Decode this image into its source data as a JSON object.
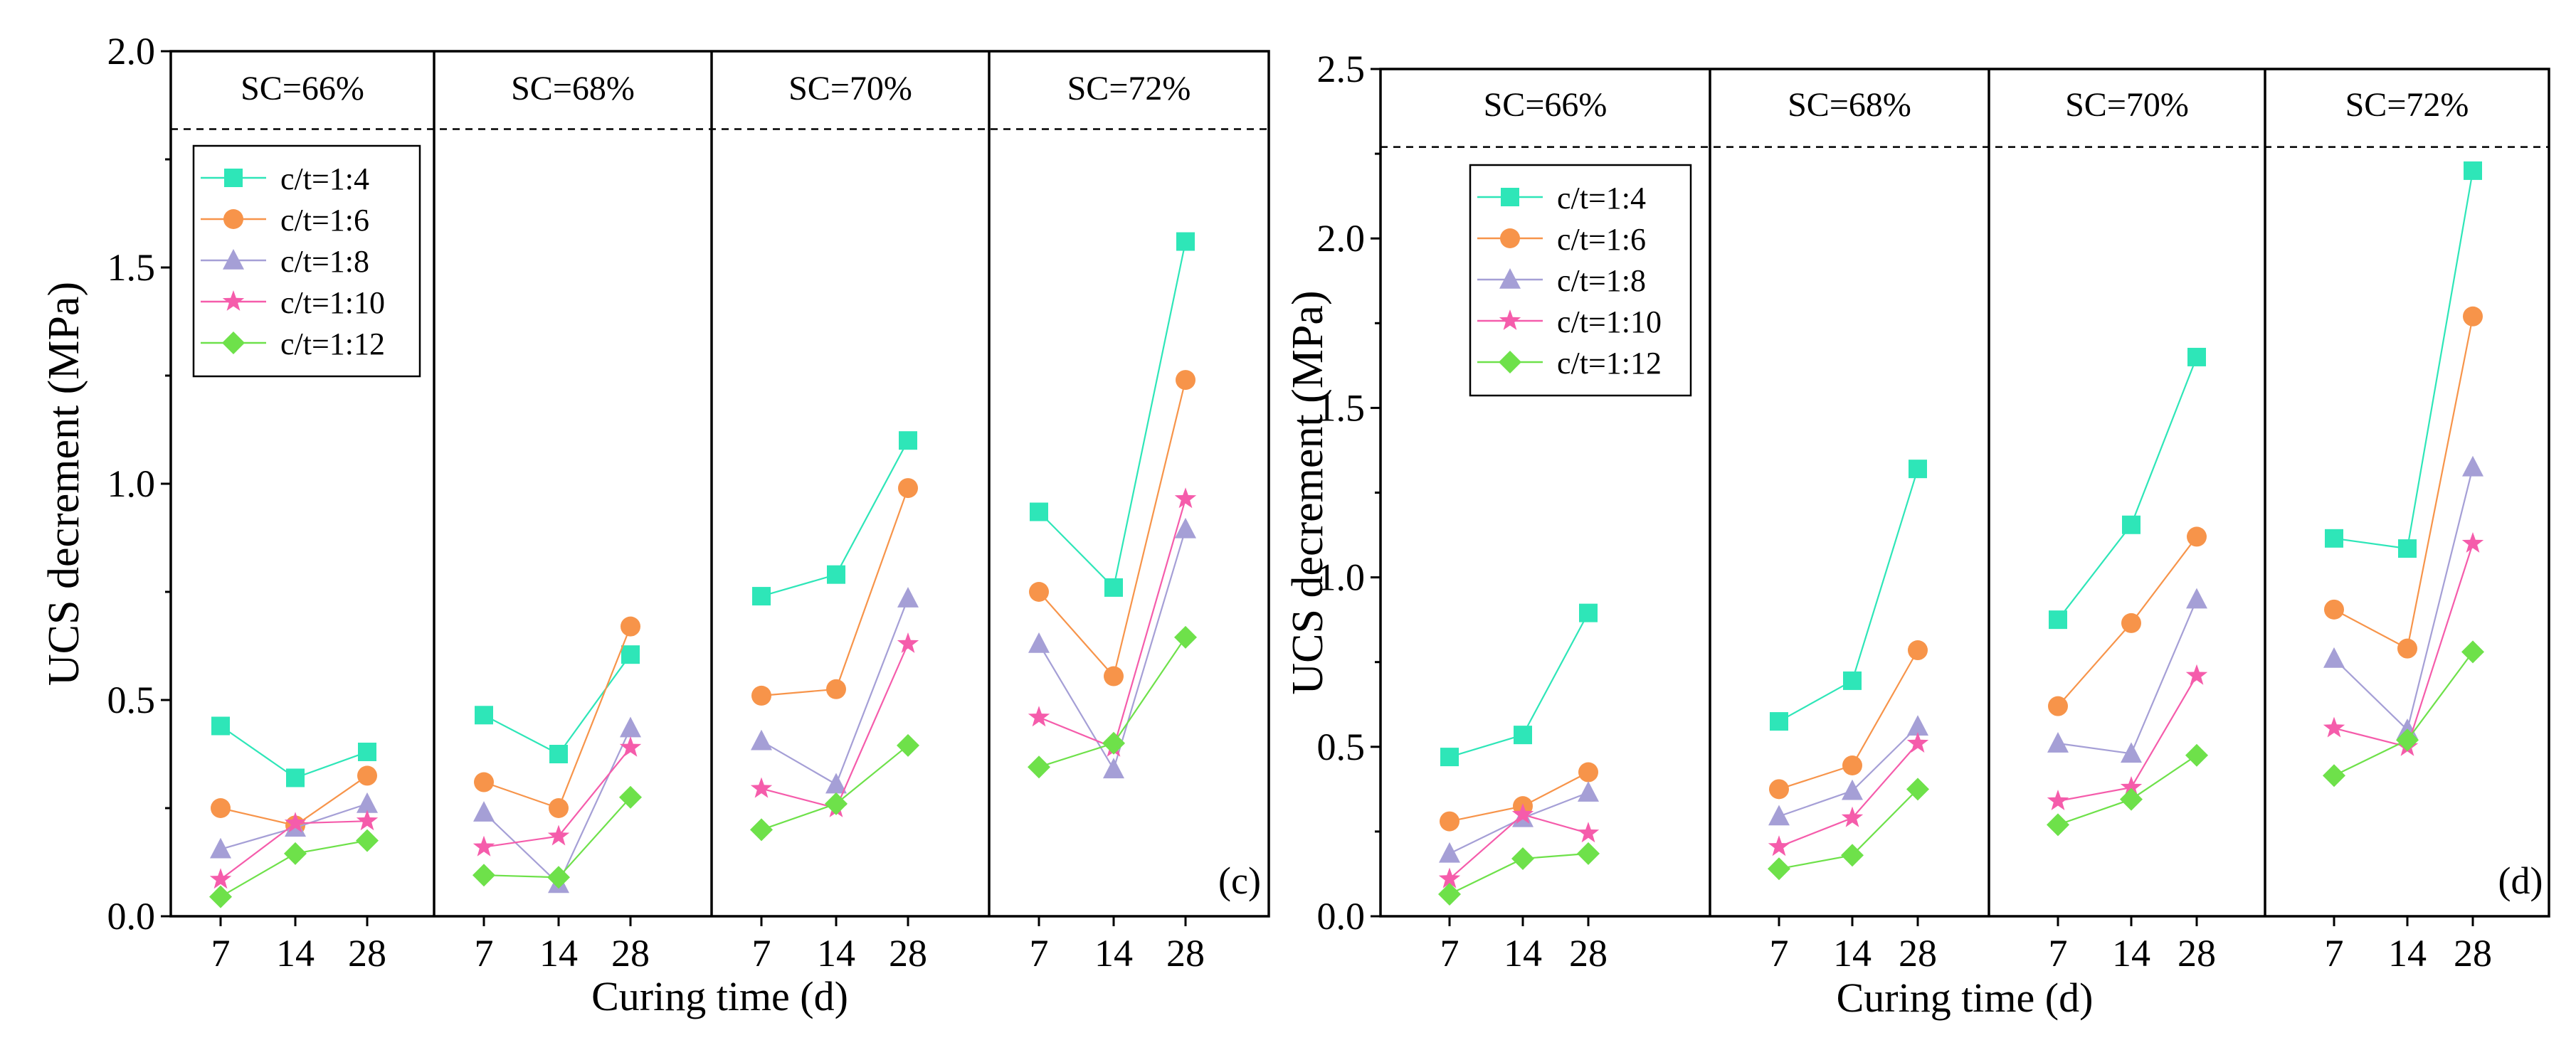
{
  "chart_data": [
    {
      "type": "line",
      "panel_label": "(c)",
      "ylabel": "UCS decrement (MPa)",
      "xlabel": "Curing time (d)",
      "ylim": [
        0,
        2.0
      ],
      "yticks": [
        0.0,
        0.5,
        1.0,
        1.5,
        2.0
      ],
      "ytick_labels": [
        "0.0",
        "0.5",
        "1.0",
        "1.5",
        "2.0"
      ],
      "x": [
        7,
        14,
        28
      ],
      "x_labels": [
        "7",
        "14",
        "28"
      ],
      "reference_line": 1.82,
      "groups": [
        {
          "label": "SC=66%",
          "series": {
            "c/t=1:4": [
              0.44,
              0.32,
              0.38
            ],
            "c/t=1:6": [
              0.25,
              0.21,
              0.325
            ],
            "c/t=1:8": [
              0.155,
              0.205,
              0.26
            ],
            "c/t=1:10": [
              0.085,
              0.215,
              0.22
            ],
            "c/t=1:12": [
              0.045,
              0.145,
              0.175
            ]
          }
        },
        {
          "label": "SC=68%",
          "series": {
            "c/t=1:4": [
              0.465,
              0.375,
              0.605
            ],
            "c/t=1:6": [
              0.31,
              0.25,
              0.67
            ],
            "c/t=1:8": [
              0.24,
              0.075,
              0.435
            ],
            "c/t=1:10": [
              0.16,
              0.185,
              0.39
            ],
            "c/t=1:12": [
              0.095,
              0.09,
              0.275
            ]
          }
        },
        {
          "label": "SC=70%",
          "series": {
            "c/t=1:4": [
              0.74,
              0.79,
              1.1
            ],
            "c/t=1:6": [
              0.51,
              0.525,
              0.99
            ],
            "c/t=1:8": [
              0.405,
              0.305,
              0.735
            ],
            "c/t=1:10": [
              0.295,
              0.25,
              0.63
            ],
            "c/t=1:12": [
              0.2,
              0.26,
              0.395
            ]
          }
        },
        {
          "label": "SC=72%",
          "series": {
            "c/t=1:4": [
              0.935,
              0.76,
              1.56
            ],
            "c/t=1:6": [
              0.75,
              0.555,
              1.24
            ],
            "c/t=1:8": [
              0.63,
              0.34,
              0.895
            ],
            "c/t=1:10": [
              0.46,
              0.39,
              0.965
            ],
            "c/t=1:12": [
              0.345,
              0.4,
              0.645
            ]
          }
        }
      ]
    },
    {
      "type": "line",
      "panel_label": "(d)",
      "ylabel": "UCS decrement (MPa)",
      "xlabel": "Curing time (d)",
      "ylim": [
        0,
        2.5
      ],
      "yticks": [
        0.0,
        0.5,
        1.0,
        1.5,
        2.0,
        2.5
      ],
      "ytick_labels": [
        "0.0",
        "0.5",
        "1.0",
        "1.5",
        "2.0",
        "2.5"
      ],
      "x": [
        7,
        14,
        28
      ],
      "x_labels": [
        "7",
        "14",
        "28"
      ],
      "reference_line": 2.27,
      "groups": [
        {
          "label": "SC=66%",
          "series": {
            "c/t=1:4": [
              0.47,
              0.535,
              0.895
            ],
            "c/t=1:6": [
              0.28,
              0.325,
              0.425
            ],
            "c/t=1:8": [
              0.185,
              0.29,
              0.365
            ],
            "c/t=1:10": [
              0.11,
              0.3,
              0.245
            ],
            "c/t=1:12": [
              0.065,
              0.17,
              0.185
            ]
          }
        },
        {
          "label": "SC=68%",
          "series": {
            "c/t=1:4": [
              0.575,
              0.695,
              1.32
            ],
            "c/t=1:6": [
              0.375,
              0.445,
              0.785
            ],
            "c/t=1:8": [
              0.295,
              0.37,
              0.56
            ],
            "c/t=1:10": [
              0.205,
              0.29,
              0.51
            ],
            "c/t=1:12": [
              0.14,
              0.18,
              0.375
            ]
          }
        },
        {
          "label": "SC=70%",
          "series": {
            "c/t=1:4": [
              0.875,
              1.155,
              1.65
            ],
            "c/t=1:6": [
              0.62,
              0.865,
              1.12
            ],
            "c/t=1:8": [
              0.51,
              0.48,
              0.935
            ],
            "c/t=1:10": [
              0.34,
              0.38,
              0.71
            ],
            "c/t=1:12": [
              0.27,
              0.345,
              0.475
            ]
          }
        },
        {
          "label": "SC=72%",
          "series": {
            "c/t=1:4": [
              1.115,
              1.085,
              2.2
            ],
            "c/t=1:6": [
              0.905,
              0.79,
              1.77
            ],
            "c/t=1:8": [
              0.76,
              0.55,
              1.325
            ],
            "c/t=1:10": [
              0.555,
              0.5,
              1.1
            ],
            "c/t=1:12": [
              0.415,
              0.52,
              0.78
            ]
          }
        }
      ]
    }
  ],
  "legend": [
    {
      "name": "c/t=1:4",
      "color": "#2ee6b8",
      "marker": "square"
    },
    {
      "name": "c/t=1:6",
      "color": "#f7944a",
      "marker": "circle"
    },
    {
      "name": "c/t=1:8",
      "color": "#a59fd6",
      "marker": "triangle"
    },
    {
      "name": "c/t=1:10",
      "color": "#f55cab",
      "marker": "star"
    },
    {
      "name": "c/t=1:12",
      "color": "#6ee14a",
      "marker": "diamond"
    }
  ]
}
